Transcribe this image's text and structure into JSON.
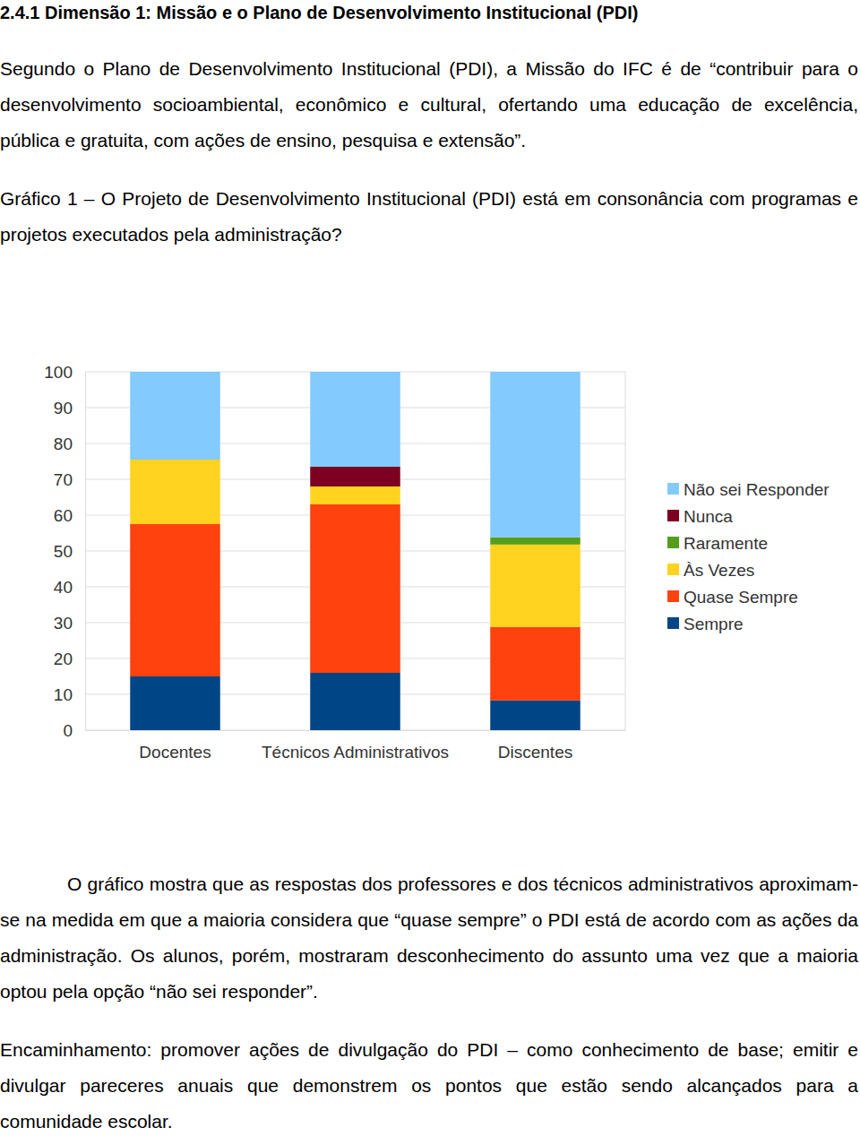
{
  "heading": "2.4.1 Dimensão 1: Missão e o Plano de Desenvolvimento Institucional (PDI)",
  "intro": "Segundo o Plano de Desenvolvimento Institucional (PDI), a Missão do IFC é de “contribuir para o desenvolvimento socioambiental, econômico e cultural, ofertando uma educação de excelência, pública e gratuita, com ações de ensino, pesquisa e extensão”.",
  "caption": "Gráfico 1 – O Projeto de Desenvolvimento Institucional (PDI) está em consonância com programas e projetos executados pela administração?",
  "chart_data": {
    "type": "bar",
    "stacked": true,
    "categories": [
      "Docentes",
      "Técnicos Administrativos",
      "Discentes"
    ],
    "series": [
      {
        "name": "Sempre",
        "color": "#004586",
        "values": [
          15,
          16,
          8.3
        ]
      },
      {
        "name": "Quase Sempre",
        "color": "#ff420e",
        "values": [
          42.5,
          47,
          20.5
        ]
      },
      {
        "name": "Às Vezes",
        "color": "#ffd320",
        "values": [
          18,
          5,
          23
        ]
      },
      {
        "name": "Raramente",
        "color": "#579d1c",
        "values": [
          0,
          0,
          2
        ]
      },
      {
        "name": "Nunca",
        "color": "#7e0021",
        "values": [
          0,
          5.5,
          0
        ]
      },
      {
        "name": "Não sei Responder",
        "color": "#83caff",
        "values": [
          24.5,
          26.5,
          46.2
        ]
      }
    ],
    "ylim": [
      0,
      100
    ],
    "yticks": [
      0,
      10,
      20,
      30,
      40,
      50,
      60,
      70,
      80,
      90,
      100
    ],
    "grid": true,
    "legend": "right"
  },
  "analysis": "O gráfico mostra que as respostas dos professores e dos técnicos administrativos aproximam-se na medida em que a maioria considera que “quase sempre” o PDI está de acordo com as ações da administração. Os alunos, porém, mostraram desconhecimento do assunto uma vez que a maioria optou pela opção “não sei responder”.",
  "recommendation": "Encaminhamento: promover ações de divulgação do PDI – como conhecimento de base; emitir e divulgar pareceres anuais que demonstrem os pontos que estão sendo alcançados para a comunidade escolar."
}
